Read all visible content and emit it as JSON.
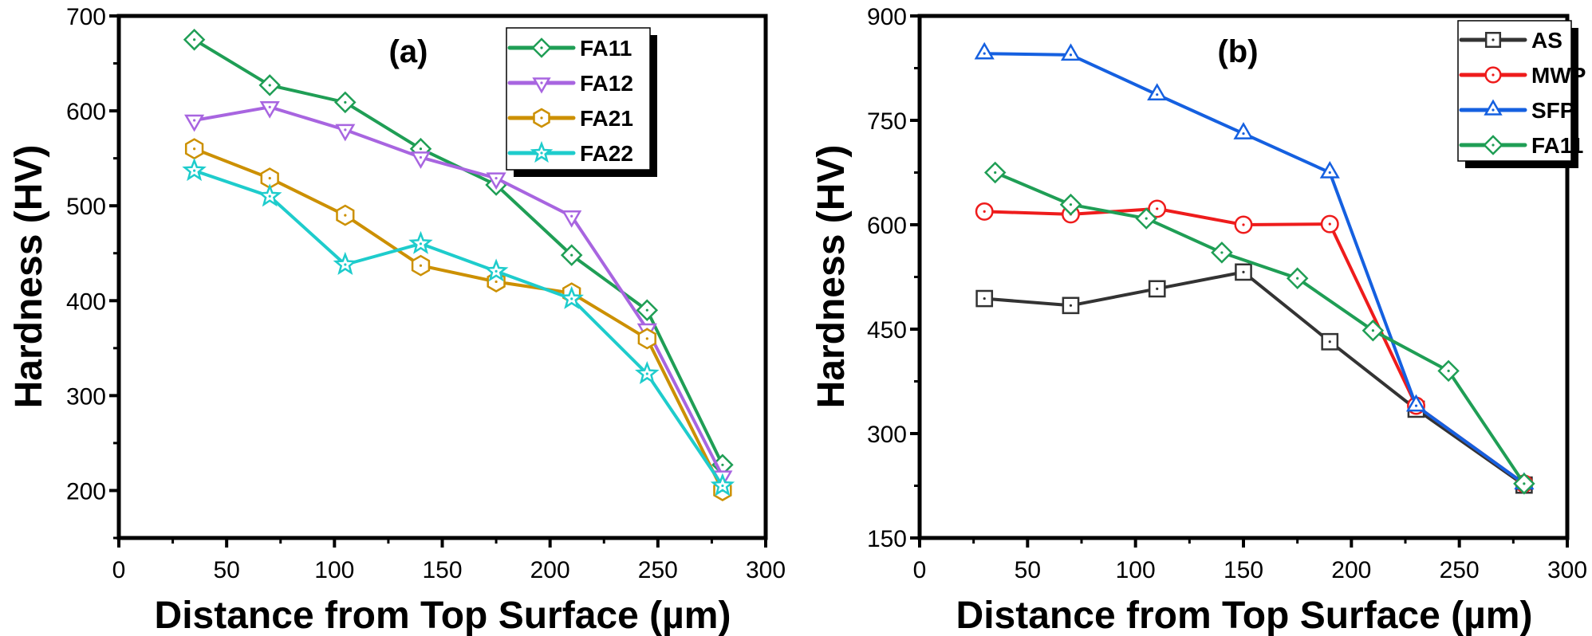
{
  "chart_data": [
    {
      "type": "line",
      "panel_label": "(a)",
      "xlabel": "Distance from Top Surface (µm)",
      "ylabel": "Hardness (HV)",
      "xlim": [
        0,
        300
      ],
      "ylim": [
        150,
        700
      ],
      "xticks": [
        0,
        50,
        100,
        150,
        200,
        250,
        300
      ],
      "yticks": [
        200,
        300,
        400,
        500,
        600,
        700
      ],
      "grid": false,
      "legend_position": "top-right",
      "series": [
        {
          "name": "FA11",
          "color": "#1f9e55",
          "marker": "diamond",
          "x": [
            35,
            70,
            105,
            140,
            175,
            210,
            245,
            280
          ],
          "y": [
            675,
            627,
            609,
            560,
            522,
            448,
            390,
            227
          ]
        },
        {
          "name": "FA12",
          "color": "#a865e0",
          "marker": "triangle-down",
          "x": [
            35,
            70,
            105,
            140,
            175,
            210,
            245,
            280
          ],
          "y": [
            590,
            604,
            580,
            551,
            529,
            489,
            370,
            215
          ]
        },
        {
          "name": "FA21",
          "color": "#cc9000",
          "marker": "hexagon",
          "x": [
            35,
            70,
            105,
            140,
            175,
            210,
            245,
            280
          ],
          "y": [
            560,
            529,
            490,
            437,
            420,
            408,
            360,
            200
          ]
        },
        {
          "name": "FA22",
          "color": "#1ecccc",
          "marker": "star",
          "x": [
            35,
            70,
            105,
            140,
            175,
            210,
            245,
            280
          ],
          "y": [
            537,
            510,
            438,
            460,
            431,
            402,
            323,
            205
          ]
        }
      ]
    },
    {
      "type": "line",
      "panel_label": "(b)",
      "xlabel": "Distance from Top Surface (µm)",
      "ylabel": "Hardness (HV)",
      "xlim": [
        0,
        300
      ],
      "ylim": [
        150,
        900
      ],
      "xticks": [
        0,
        50,
        100,
        150,
        200,
        250,
        300
      ],
      "yticks": [
        150,
        300,
        450,
        600,
        750,
        900
      ],
      "grid": false,
      "legend_position": "top-right",
      "series": [
        {
          "name": "AS",
          "color": "#333333",
          "marker": "square",
          "x": [
            30,
            70,
            110,
            150,
            190,
            230,
            280
          ],
          "y": [
            494,
            484,
            508,
            532,
            432,
            335,
            226
          ]
        },
        {
          "name": "MWP",
          "color": "#ee1c1c",
          "marker": "circle",
          "x": [
            30,
            70,
            110,
            150,
            190,
            230,
            280
          ],
          "y": [
            619,
            615,
            623,
            600,
            601,
            340,
            228
          ]
        },
        {
          "name": "SFP",
          "color": "#1560e0",
          "marker": "triangle-up",
          "x": [
            30,
            70,
            110,
            150,
            190,
            230,
            280
          ],
          "y": [
            846,
            844,
            787,
            731,
            675,
            340,
            228
          ]
        },
        {
          "name": "FA11",
          "color": "#1f9e55",
          "marker": "diamond",
          "x": [
            35,
            70,
            105,
            140,
            175,
            210,
            245,
            280
          ],
          "y": [
            675,
            629,
            609,
            560,
            523,
            448,
            390,
            228
          ]
        }
      ]
    }
  ]
}
